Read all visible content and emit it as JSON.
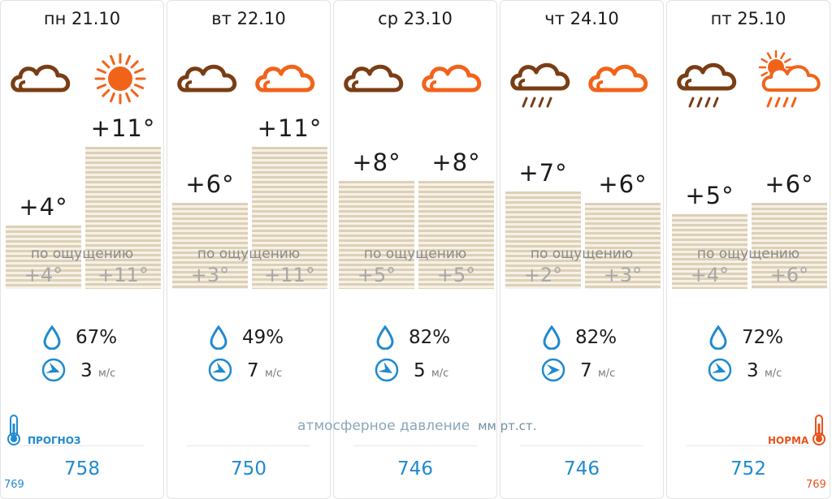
{
  "days": [
    {
      "label": "пн 21.10",
      "icons": [
        "cloudy-night-icon",
        "sunny-icon"
      ],
      "temps": [
        "+4°",
        "+11°"
      ],
      "temp_values": [
        4,
        11
      ],
      "feels_label": "по ощущению",
      "feels": [
        "+4°",
        "+11°"
      ],
      "humidity": "67%",
      "wind_speed": "3",
      "wind_unit": "м/с",
      "pressure": "758"
    },
    {
      "label": "вт 22.10",
      "icons": [
        "cloudy-night-icon",
        "cloudy-day-icon"
      ],
      "temps": [
        "+6°",
        "+11°"
      ],
      "temp_values": [
        6,
        11
      ],
      "feels_label": "по ощущению",
      "feels": [
        "+3°",
        "+11°"
      ],
      "humidity": "49%",
      "wind_speed": "7",
      "wind_unit": "м/с",
      "pressure": "750"
    },
    {
      "label": "ср 23.10",
      "icons": [
        "cloudy-night-icon",
        "cloudy-day-icon"
      ],
      "temps": [
        "+8°",
        "+8°"
      ],
      "temp_values": [
        8,
        8
      ],
      "feels_label": "по ощущению",
      "feels": [
        "+5°",
        "+5°"
      ],
      "humidity": "82%",
      "wind_speed": "5",
      "wind_unit": "м/с",
      "pressure": "746"
    },
    {
      "label": "чт 24.10",
      "icons": [
        "rain-night-icon",
        "cloudy-day-icon"
      ],
      "temps": [
        "+7°",
        "+6°"
      ],
      "temp_values": [
        7,
        6
      ],
      "feels_label": "по ощущению",
      "feels": [
        "+2°",
        "+3°"
      ],
      "humidity": "82%",
      "wind_speed": "7",
      "wind_unit": "м/с",
      "pressure": "746"
    },
    {
      "label": "пт 25.10",
      "icons": [
        "rain-night-icon",
        "sun-cloud-rain-icon"
      ],
      "temps": [
        "+5°",
        "+6°"
      ],
      "temp_values": [
        5,
        6
      ],
      "feels_label": "по ощущению",
      "feels": [
        "+4°",
        "+6°"
      ],
      "humidity": "72%",
      "wind_speed": "3",
      "wind_unit": "м/с",
      "pressure": "752"
    }
  ],
  "pressure_caption": "атмосферное давление",
  "pressure_unit": "мм рт.ст.",
  "forecast_label": "ПРОГНОЗ",
  "forecast_value": "769",
  "norm_label": "НОРМА",
  "norm_value": "769",
  "colors": {
    "night": "#7a3d14",
    "day": "#f2631a",
    "accent_blue": "#1f8ad0",
    "norm_orange": "#e8531b"
  }
}
